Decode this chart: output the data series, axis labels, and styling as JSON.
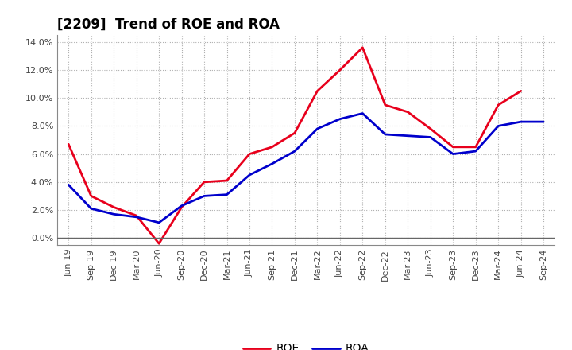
{
  "title": "[2209]  Trend of ROE and ROA",
  "x_labels": [
    "Jun-19",
    "Sep-19",
    "Dec-19",
    "Mar-20",
    "Jun-20",
    "Sep-20",
    "Dec-20",
    "Mar-21",
    "Jun-21",
    "Sep-21",
    "Dec-21",
    "Mar-22",
    "Jun-22",
    "Sep-22",
    "Dec-22",
    "Mar-23",
    "Jun-23",
    "Sep-23",
    "Dec-23",
    "Mar-24",
    "Jun-24",
    "Sep-24"
  ],
  "roe": [
    6.7,
    3.0,
    2.2,
    1.6,
    -0.4,
    2.2,
    4.0,
    4.1,
    6.0,
    6.5,
    7.5,
    10.5,
    12.0,
    13.6,
    9.5,
    9.0,
    7.8,
    6.5,
    6.5,
    9.5,
    10.5,
    null
  ],
  "roa": [
    3.8,
    2.1,
    1.7,
    1.5,
    1.1,
    2.3,
    3.0,
    3.1,
    4.5,
    5.3,
    6.2,
    7.8,
    8.5,
    8.9,
    7.4,
    7.3,
    7.2,
    6.0,
    6.2,
    8.0,
    8.3,
    8.3
  ],
  "roe_color": "#e8001c",
  "roa_color": "#0000cc",
  "ylim_min": -0.5,
  "ylim_max": 14.5,
  "yticks": [
    0.0,
    2.0,
    4.0,
    6.0,
    8.0,
    10.0,
    12.0,
    14.0
  ],
  "background_color": "#ffffff",
  "grid_color": "#b0b0b0",
  "title_fontsize": 12,
  "tick_fontsize": 8,
  "legend_fontsize": 10
}
